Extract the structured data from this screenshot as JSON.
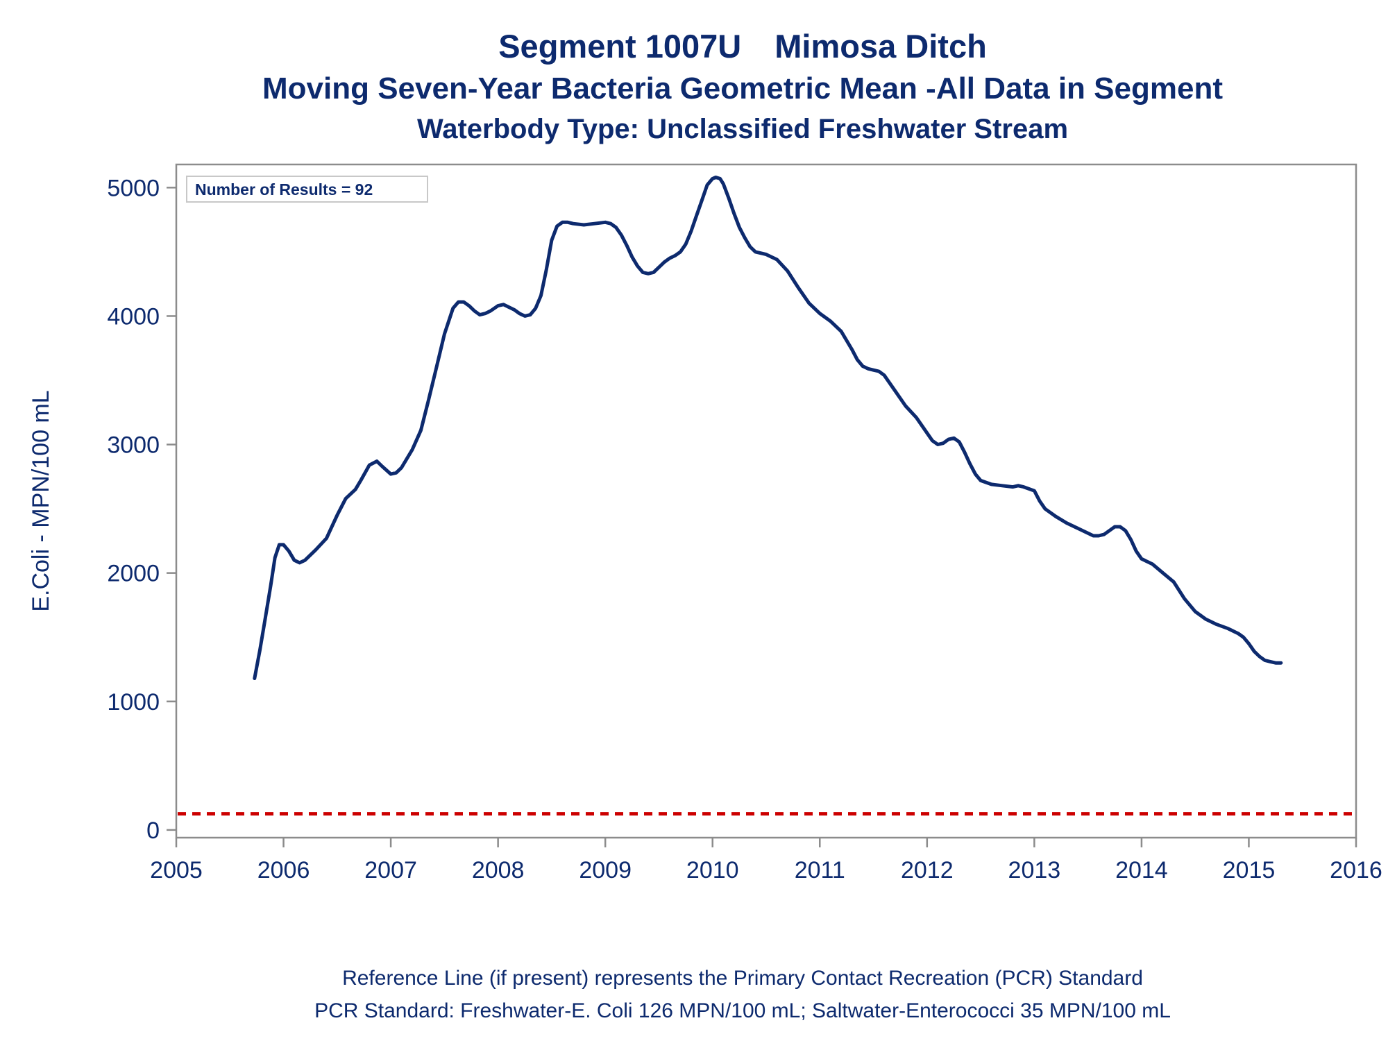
{
  "chart_data": {
    "type": "line",
    "title": "Segment 1007U",
    "title_name": "Mimosa Ditch",
    "subtitle": "Moving Seven-Year Bacteria Geometric Mean -All Data in Segment",
    "subtitle2": "Waterbody Type: Unclassified Freshwater Stream",
    "xlabel": "",
    "ylabel": "E.Coli - MPN/100 mL",
    "xlim": [
      2005,
      2016
    ],
    "ylim": [
      -60,
      5180
    ],
    "x_ticks": [
      2005,
      2006,
      2007,
      2008,
      2009,
      2010,
      2011,
      2012,
      2013,
      2014,
      2015,
      2016
    ],
    "y_ticks": [
      0,
      1000,
      2000,
      3000,
      4000,
      5000
    ],
    "annotation": "Number of Results = 92",
    "reference_line": {
      "y": 126,
      "color": "#cc0000",
      "style": "dashed"
    },
    "series": [
      {
        "color": "#0d2a6e",
        "x": [
          2005.73,
          2005.78,
          2005.83,
          2005.88,
          2005.92,
          2005.96,
          2006.0,
          2006.05,
          2006.1,
          2006.15,
          2006.2,
          2006.3,
          2006.4,
          2006.5,
          2006.58,
          2006.67,
          2006.72,
          2006.8,
          2006.87,
          2006.92,
          2007.0,
          2007.05,
          2007.1,
          2007.2,
          2007.28,
          2007.35,
          2007.42,
          2007.5,
          2007.58,
          2007.63,
          2007.68,
          2007.73,
          2007.78,
          2007.83,
          2007.88,
          2007.93,
          2008.0,
          2008.05,
          2008.1,
          2008.15,
          2008.2,
          2008.25,
          2008.3,
          2008.35,
          2008.4,
          2008.45,
          2008.5,
          2008.55,
          2008.6,
          2008.65,
          2008.7,
          2008.8,
          2008.9,
          2009.0,
          2009.05,
          2009.1,
          2009.15,
          2009.2,
          2009.25,
          2009.3,
          2009.35,
          2009.4,
          2009.45,
          2009.5,
          2009.55,
          2009.6,
          2009.65,
          2009.7,
          2009.75,
          2009.8,
          2009.85,
          2009.9,
          2009.95,
          2010.0,
          2010.03,
          2010.07,
          2010.1,
          2010.15,
          2010.2,
          2010.25,
          2010.3,
          2010.35,
          2010.4,
          2010.5,
          2010.6,
          2010.7,
          2010.8,
          2010.9,
          2011.0,
          2011.1,
          2011.2,
          2011.3,
          2011.35,
          2011.4,
          2011.45,
          2011.5,
          2011.55,
          2011.6,
          2011.7,
          2011.8,
          2011.9,
          2011.95,
          2012.0,
          2012.05,
          2012.1,
          2012.15,
          2012.2,
          2012.25,
          2012.3,
          2012.35,
          2012.4,
          2012.45,
          2012.5,
          2012.6,
          2012.7,
          2012.8,
          2012.85,
          2012.9,
          2013.0,
          2013.05,
          2013.1,
          2013.2,
          2013.3,
          2013.4,
          2013.5,
          2013.55,
          2013.6,
          2013.65,
          2013.7,
          2013.75,
          2013.8,
          2013.85,
          2013.9,
          2013.95,
          2014.0,
          2014.1,
          2014.2,
          2014.3,
          2014.4,
          2014.5,
          2014.6,
          2014.7,
          2014.8,
          2014.9,
          2014.95,
          2015.0,
          2015.05,
          2015.1,
          2015.15,
          2015.2,
          2015.25,
          2015.3
        ],
        "values": [
          1180,
          1400,
          1650,
          1900,
          2120,
          2220,
          2220,
          2170,
          2100,
          2080,
          2100,
          2180,
          2270,
          2450,
          2580,
          2650,
          2720,
          2840,
          2870,
          2830,
          2770,
          2780,
          2820,
          2960,
          3110,
          3340,
          3580,
          3860,
          4060,
          4110,
          4110,
          4080,
          4040,
          4010,
          4020,
          4040,
          4080,
          4090,
          4070,
          4050,
          4020,
          4000,
          4010,
          4060,
          4160,
          4360,
          4590,
          4700,
          4730,
          4730,
          4720,
          4710,
          4720,
          4730,
          4720,
          4690,
          4630,
          4550,
          4460,
          4390,
          4340,
          4330,
          4340,
          4380,
          4420,
          4450,
          4470,
          4500,
          4560,
          4660,
          4780,
          4900,
          5020,
          5070,
          5080,
          5070,
          5030,
          4920,
          4800,
          4690,
          4610,
          4540,
          4500,
          4480,
          4440,
          4350,
          4220,
          4100,
          4020,
          3960,
          3880,
          3740,
          3660,
          3610,
          3590,
          3580,
          3570,
          3540,
          3420,
          3300,
          3210,
          3150,
          3090,
          3030,
          3000,
          3010,
          3040,
          3050,
          3020,
          2940,
          2850,
          2770,
          2720,
          2690,
          2680,
          2670,
          2680,
          2670,
          2640,
          2560,
          2500,
          2440,
          2390,
          2350,
          2310,
          2290,
          2290,
          2300,
          2330,
          2360,
          2360,
          2330,
          2260,
          2170,
          2110,
          2070,
          2000,
          1930,
          1800,
          1700,
          1640,
          1600,
          1570,
          1530,
          1500,
          1450,
          1390,
          1350,
          1320,
          1310,
          1300,
          1300
        ]
      }
    ]
  },
  "footer": {
    "line1": "Reference Line (if present) represents the Primary Contact Recreation (PCR) Standard",
    "line2": "PCR Standard: Freshwater-E. Coli 126 MPN/100 mL; Saltwater-Enterococci 35 MPN/100 mL"
  },
  "colors": {
    "text": "#0d2a6e",
    "line": "#0d2a6e",
    "reference": "#cc0000",
    "frame": "#8c8c8c"
  }
}
